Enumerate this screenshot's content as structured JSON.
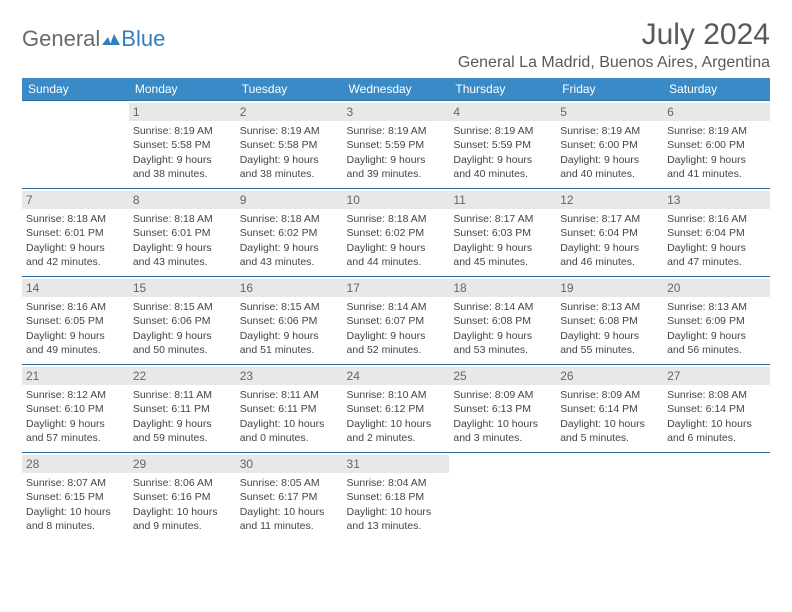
{
  "brand": {
    "part1": "General",
    "part2": "Blue"
  },
  "title": "July 2024",
  "location": "General La Madrid, Buenos Aires, Argentina",
  "colors": {
    "header_bg": "#3a8ac7",
    "row_border": "#2f6fa0",
    "daynum_bg": "#e8e8e8",
    "text": "#444444",
    "title_text": "#595959"
  },
  "daysOfWeek": [
    "Sunday",
    "Monday",
    "Tuesday",
    "Wednesday",
    "Thursday",
    "Friday",
    "Saturday"
  ],
  "weeks": [
    [
      null,
      {
        "n": "1",
        "sr": "8:19 AM",
        "ss": "5:58 PM",
        "dl": "9 hours and 38 minutes."
      },
      {
        "n": "2",
        "sr": "8:19 AM",
        "ss": "5:58 PM",
        "dl": "9 hours and 38 minutes."
      },
      {
        "n": "3",
        "sr": "8:19 AM",
        "ss": "5:59 PM",
        "dl": "9 hours and 39 minutes."
      },
      {
        "n": "4",
        "sr": "8:19 AM",
        "ss": "5:59 PM",
        "dl": "9 hours and 40 minutes."
      },
      {
        "n": "5",
        "sr": "8:19 AM",
        "ss": "6:00 PM",
        "dl": "9 hours and 40 minutes."
      },
      {
        "n": "6",
        "sr": "8:19 AM",
        "ss": "6:00 PM",
        "dl": "9 hours and 41 minutes."
      }
    ],
    [
      {
        "n": "7",
        "sr": "8:18 AM",
        "ss": "6:01 PM",
        "dl": "9 hours and 42 minutes."
      },
      {
        "n": "8",
        "sr": "8:18 AM",
        "ss": "6:01 PM",
        "dl": "9 hours and 43 minutes."
      },
      {
        "n": "9",
        "sr": "8:18 AM",
        "ss": "6:02 PM",
        "dl": "9 hours and 43 minutes."
      },
      {
        "n": "10",
        "sr": "8:18 AM",
        "ss": "6:02 PM",
        "dl": "9 hours and 44 minutes."
      },
      {
        "n": "11",
        "sr": "8:17 AM",
        "ss": "6:03 PM",
        "dl": "9 hours and 45 minutes."
      },
      {
        "n": "12",
        "sr": "8:17 AM",
        "ss": "6:04 PM",
        "dl": "9 hours and 46 minutes."
      },
      {
        "n": "13",
        "sr": "8:16 AM",
        "ss": "6:04 PM",
        "dl": "9 hours and 47 minutes."
      }
    ],
    [
      {
        "n": "14",
        "sr": "8:16 AM",
        "ss": "6:05 PM",
        "dl": "9 hours and 49 minutes."
      },
      {
        "n": "15",
        "sr": "8:15 AM",
        "ss": "6:06 PM",
        "dl": "9 hours and 50 minutes."
      },
      {
        "n": "16",
        "sr": "8:15 AM",
        "ss": "6:06 PM",
        "dl": "9 hours and 51 minutes."
      },
      {
        "n": "17",
        "sr": "8:14 AM",
        "ss": "6:07 PM",
        "dl": "9 hours and 52 minutes."
      },
      {
        "n": "18",
        "sr": "8:14 AM",
        "ss": "6:08 PM",
        "dl": "9 hours and 53 minutes."
      },
      {
        "n": "19",
        "sr": "8:13 AM",
        "ss": "6:08 PM",
        "dl": "9 hours and 55 minutes."
      },
      {
        "n": "20",
        "sr": "8:13 AM",
        "ss": "6:09 PM",
        "dl": "9 hours and 56 minutes."
      }
    ],
    [
      {
        "n": "21",
        "sr": "8:12 AM",
        "ss": "6:10 PM",
        "dl": "9 hours and 57 minutes."
      },
      {
        "n": "22",
        "sr": "8:11 AM",
        "ss": "6:11 PM",
        "dl": "9 hours and 59 minutes."
      },
      {
        "n": "23",
        "sr": "8:11 AM",
        "ss": "6:11 PM",
        "dl": "10 hours and 0 minutes."
      },
      {
        "n": "24",
        "sr": "8:10 AM",
        "ss": "6:12 PM",
        "dl": "10 hours and 2 minutes."
      },
      {
        "n": "25",
        "sr": "8:09 AM",
        "ss": "6:13 PM",
        "dl": "10 hours and 3 minutes."
      },
      {
        "n": "26",
        "sr": "8:09 AM",
        "ss": "6:14 PM",
        "dl": "10 hours and 5 minutes."
      },
      {
        "n": "27",
        "sr": "8:08 AM",
        "ss": "6:14 PM",
        "dl": "10 hours and 6 minutes."
      }
    ],
    [
      {
        "n": "28",
        "sr": "8:07 AM",
        "ss": "6:15 PM",
        "dl": "10 hours and 8 minutes."
      },
      {
        "n": "29",
        "sr": "8:06 AM",
        "ss": "6:16 PM",
        "dl": "10 hours and 9 minutes."
      },
      {
        "n": "30",
        "sr": "8:05 AM",
        "ss": "6:17 PM",
        "dl": "10 hours and 11 minutes."
      },
      {
        "n": "31",
        "sr": "8:04 AM",
        "ss": "6:18 PM",
        "dl": "10 hours and 13 minutes."
      },
      null,
      null,
      null
    ]
  ],
  "labels": {
    "sunrise": "Sunrise:",
    "sunset": "Sunset:",
    "daylight": "Daylight:"
  }
}
